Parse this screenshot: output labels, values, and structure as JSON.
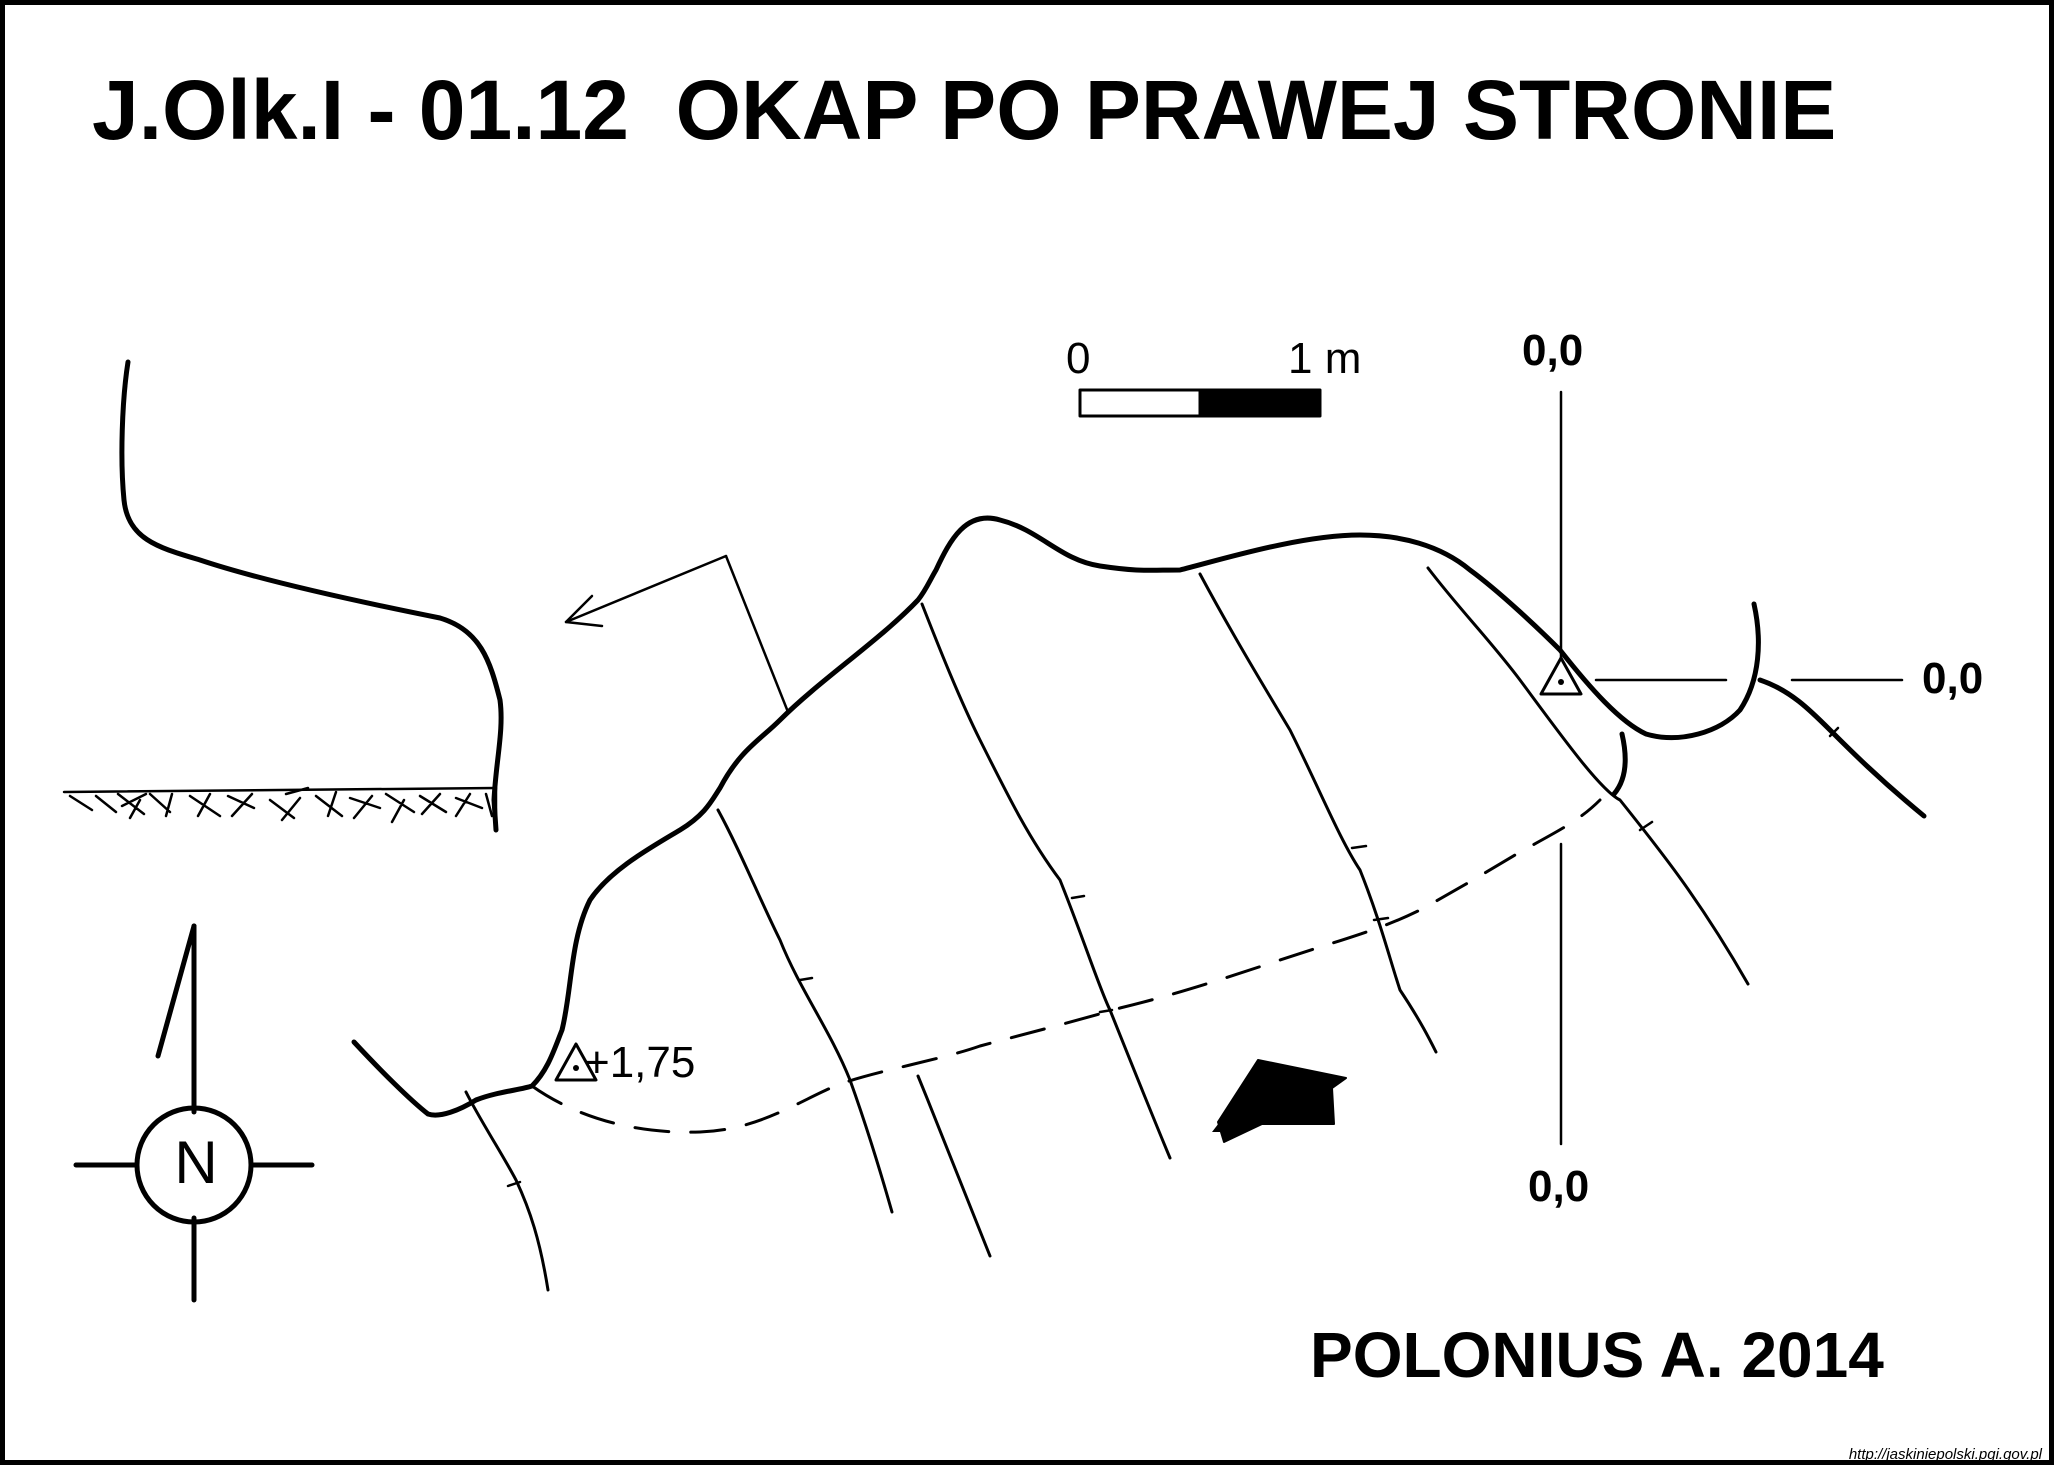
{
  "title": "J.Olk.I - 01.12  OKAP PO PRAWEJ STRONIE",
  "author": "POLONIUS A. 2014",
  "source_url": "http://jaskiniepolski.pgi.gov.pl",
  "scale_bar": {
    "start_label": "0",
    "end_label": "1 m"
  },
  "compass": {
    "letter": "N"
  },
  "section_labels": {
    "top": "0,0",
    "right": "0,0",
    "bottom": "0,0"
  },
  "survey_point": {
    "label": "+1,75"
  },
  "colors": {
    "ink": "#000000",
    "paper": "#ffffff"
  }
}
